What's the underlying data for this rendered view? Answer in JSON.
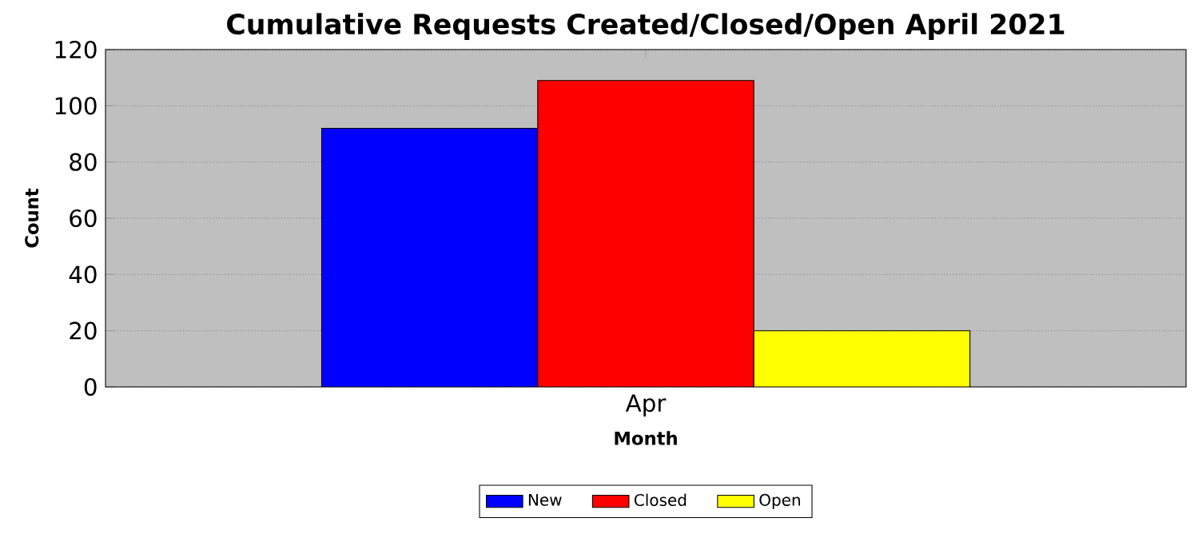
{
  "chart_data": {
    "type": "bar",
    "title": "Cumulative Requests Created/Closed/Open April 2021",
    "xlabel": "Month",
    "ylabel": "Count",
    "categories": [
      "Apr"
    ],
    "series": [
      {
        "name": "New",
        "color": "#0000ff",
        "values": [
          92
        ]
      },
      {
        "name": "Closed",
        "color": "#ff0000",
        "values": [
          109
        ]
      },
      {
        "name": "Open",
        "color": "#ffff00",
        "values": [
          20
        ]
      }
    ],
    "ylim": [
      0,
      120
    ],
    "yticks": [
      0,
      20,
      40,
      60,
      80,
      100,
      120
    ],
    "grid": "y",
    "legend": "bottom"
  }
}
